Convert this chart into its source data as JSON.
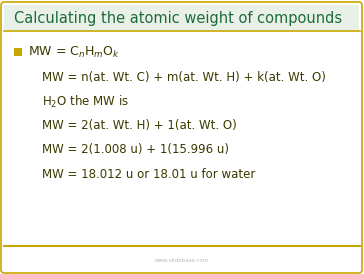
{
  "title": "Calculating the atomic weight of compounds",
  "title_color": "#1E6B3C",
  "border_color": "#C8A800",
  "background_color": "#FFFFFF",
  "bullet_color": "#C8A800",
  "body_text_color": "#3A3A00",
  "watermark": "www.slidebase.com",
  "lines": [
    "MW = n(at. Wt. C) + m(at. Wt. H) + k(at. Wt. O)",
    "H2O the MW is",
    "MW = 2(at. Wt. H) + 1(at. Wt. O)",
    "MW = 2(1.008 u) + 1(15.996 u)",
    "MW = 18.012 u or 18.01 u for water"
  ],
  "figsize": [
    3.64,
    2.74
  ],
  "dpi": 100
}
